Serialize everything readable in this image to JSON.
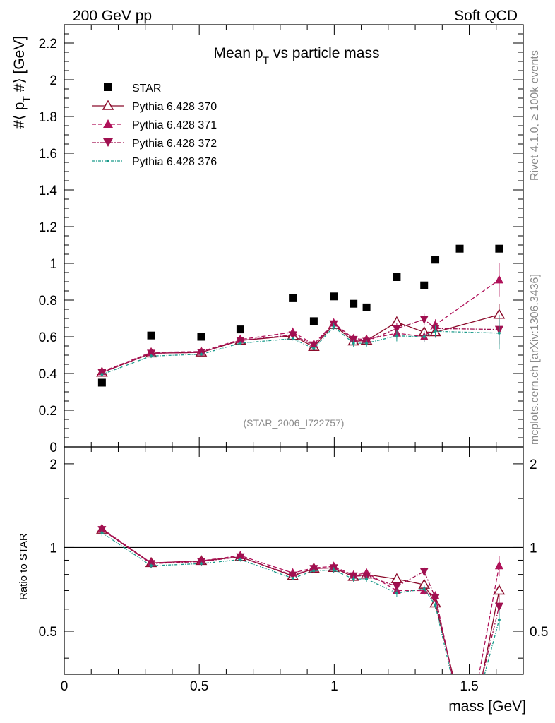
{
  "header": {
    "left": "200 GeV pp",
    "right": "Soft QCD"
  },
  "side": {
    "rivet": "Rivet 4.1.0, ≥ 100k events",
    "mcplots": "mcplots.cern.ch [arXiv:1306.3436]"
  },
  "chart_data": {
    "type": "scatter",
    "title": "Mean p_T vs particle mass",
    "title_main": "Mean p",
    "title_sub": "T",
    "title_tail": " vs particle mass",
    "ylabel_main": "#⟨ p",
    "ylabel_sub": "T",
    "ylabel_tail": " #⟩ [GeV]",
    "xlabel": "mass [GeV]",
    "ratio_ylabel": "Ratio to STAR",
    "analysis_tag": "(STAR_2006_I722757)",
    "xlim": [
      0,
      1.7
    ],
    "ylim": [
      0,
      2.3
    ],
    "ratio_ylim": [
      0.35,
      2.3
    ],
    "x_ticks": [
      "0",
      "0.5",
      "1",
      "1.5"
    ],
    "x_tick_values": [
      0,
      0.5,
      1,
      1.5
    ],
    "y_ticks": [
      "0",
      "0.2",
      "0.4",
      "0.6",
      "0.8",
      "1",
      "1.2",
      "1.4",
      "1.6",
      "1.8",
      "2",
      "2.2"
    ],
    "y_tick_values": [
      0,
      0.2,
      0.4,
      0.6,
      0.8,
      1,
      1.2,
      1.4,
      1.6,
      1.8,
      2,
      2.2
    ],
    "ratio_ticks": [
      "0.5",
      "1",
      "2"
    ],
    "ratio_tick_values": [
      0.5,
      1,
      2
    ],
    "data": {
      "name": "STAR",
      "x": [
        0.1396,
        0.3218,
        0.5073,
        0.6523,
        0.8464,
        0.9243,
        0.9982,
        1.0714,
        1.1196,
        1.2316,
        1.3331,
        1.3745,
        1.4647,
        1.6108
      ],
      "y": [
        0.35,
        0.607,
        0.6,
        0.64,
        0.81,
        0.685,
        0.82,
        0.78,
        0.76,
        0.925,
        0.88,
        1.02,
        1.08,
        1.08
      ]
    },
    "series": [
      {
        "name": "Pythia 6.428 370",
        "color": "#8b0a2a",
        "dash": "",
        "marker": "tri-up-open",
        "x": [
          0.1396,
          0.3218,
          0.5073,
          0.6523,
          0.8464,
          0.9243,
          0.9982,
          1.0714,
          1.1196,
          1.2316,
          1.3331,
          1.3745,
          1.6108
        ],
        "y": [
          0.405,
          0.51,
          0.515,
          0.58,
          0.605,
          0.545,
          0.665,
          0.575,
          0.58,
          0.68,
          0.625,
          0.625,
          0.72
        ],
        "err": [
          0.01,
          0.01,
          0.01,
          0.01,
          0.01,
          0.01,
          0.02,
          0.02,
          0.02,
          0.03,
          0.03,
          0.03,
          0.06
        ],
        "ratio": [
          1.16,
          0.88,
          0.895,
          0.925,
          0.79,
          0.84,
          0.845,
          0.785,
          0.8,
          0.77,
          0.735,
          0.63,
          0.7
        ],
        "ratio_ext": [
          {
            "x": 1.5,
            "y": 0.2
          }
        ]
      },
      {
        "name": "Pythia 6.428 371",
        "color": "#b0125a",
        "dash": "6,3",
        "marker": "tri-up-filled",
        "x": [
          0.1396,
          0.3218,
          0.5073,
          0.6523,
          0.8464,
          0.9243,
          0.9982,
          1.0714,
          1.1196,
          1.2316,
          1.3331,
          1.3745,
          1.6108
        ],
        "y": [
          0.41,
          0.515,
          0.52,
          0.585,
          0.625,
          0.56,
          0.675,
          0.59,
          0.585,
          0.62,
          0.6,
          0.665,
          0.91
        ],
        "err": [
          0.01,
          0.01,
          0.01,
          0.01,
          0.01,
          0.01,
          0.02,
          0.02,
          0.02,
          0.03,
          0.03,
          0.03,
          0.09
        ],
        "ratio": [
          1.17,
          0.88,
          0.895,
          0.935,
          0.81,
          0.845,
          0.855,
          0.795,
          0.81,
          0.7,
          0.7,
          0.67,
          0.86
        ],
        "ratio_ext": [
          {
            "x": 1.49,
            "y": 0.2
          }
        ]
      },
      {
        "name": "Pythia 6.428 372",
        "color": "#a01050",
        "dash": "6,2,2,2",
        "marker": "tri-down-filled",
        "x": [
          0.1396,
          0.3218,
          0.5073,
          0.6523,
          0.8464,
          0.9243,
          0.9982,
          1.0714,
          1.1196,
          1.2316,
          1.3331,
          1.3745,
          1.6108
        ],
        "y": [
          0.405,
          0.51,
          0.515,
          0.58,
          0.61,
          0.555,
          0.67,
          0.585,
          0.575,
          0.645,
          0.695,
          0.645,
          0.64
        ],
        "err": [
          0.01,
          0.01,
          0.01,
          0.01,
          0.01,
          0.01,
          0.02,
          0.02,
          0.02,
          0.03,
          0.03,
          0.03,
          0.08
        ],
        "ratio": [
          1.16,
          0.875,
          0.89,
          0.925,
          0.795,
          0.84,
          0.845,
          0.79,
          0.79,
          0.725,
          0.82,
          0.66,
          0.615
        ],
        "ratio_ext": [
          {
            "x": 1.49,
            "y": 0.2
          }
        ]
      },
      {
        "name": "Pythia 6.428 376",
        "color": "#1a9a8a",
        "dash": "4,2,1,2",
        "marker": "dot",
        "x": [
          0.1396,
          0.3218,
          0.5073,
          0.6523,
          0.8464,
          0.9243,
          0.9982,
          1.0714,
          1.1196,
          1.2316,
          1.3331,
          1.3745,
          1.6108
        ],
        "y": [
          0.395,
          0.495,
          0.505,
          0.565,
          0.59,
          0.535,
          0.655,
          0.565,
          0.565,
          0.605,
          0.6,
          0.63,
          0.62
        ],
        "err": [
          0.01,
          0.01,
          0.01,
          0.01,
          0.01,
          0.01,
          0.02,
          0.02,
          0.02,
          0.03,
          0.03,
          0.03,
          0.09
        ],
        "ratio": [
          1.13,
          0.86,
          0.875,
          0.905,
          0.775,
          0.825,
          0.83,
          0.77,
          0.77,
          0.685,
          0.71,
          0.62,
          0.55
        ],
        "ratio_ext": [
          {
            "x": 1.49,
            "y": 0.2
          }
        ]
      }
    ]
  }
}
